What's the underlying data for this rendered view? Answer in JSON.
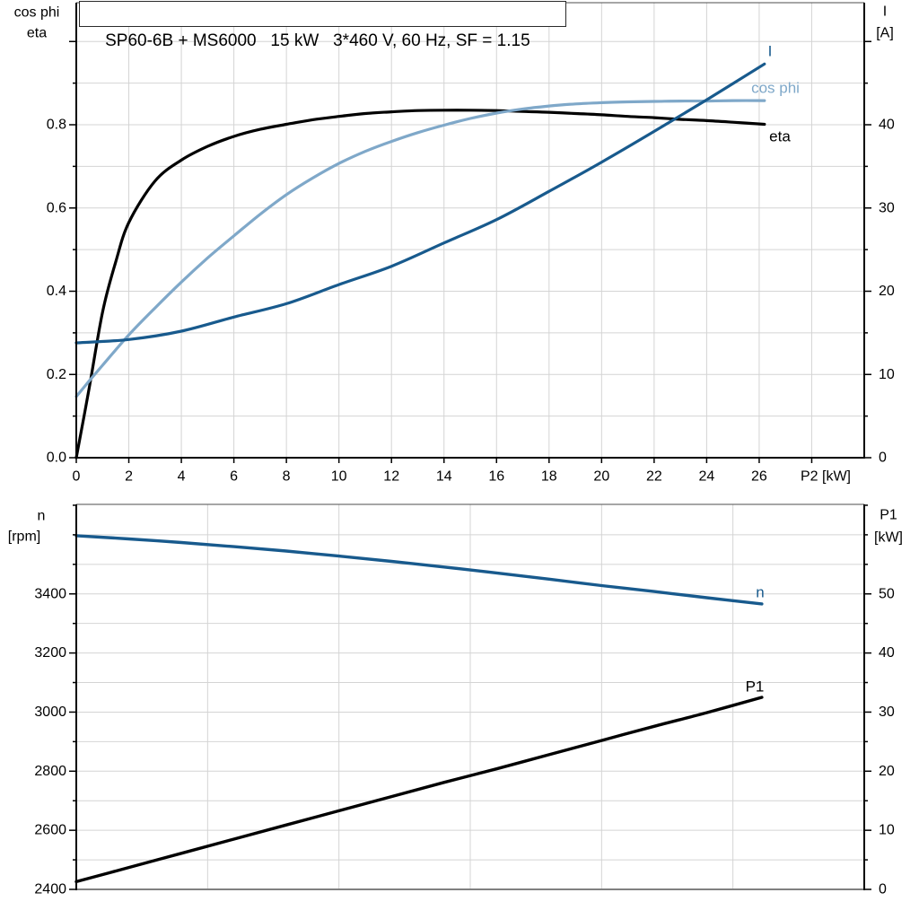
{
  "title": "SP60-6B + MS6000   15 kW   3*460 V, 60 Hz, SF = 1.15",
  "colors": {
    "dark_blue": "#185a8d",
    "light_blue": "#7fa8c9",
    "black": "#000000",
    "grid": "#d4d4d4",
    "frame": "#4d4d4d",
    "baseline_gray": "#808080"
  },
  "chart_data": [
    {
      "id": "motor-electrical-curves",
      "type": "line",
      "xlabel": "P2 [kW]",
      "x_range": [
        0,
        30
      ],
      "x_grid_step_kw": 2,
      "x_ticks": [
        "0",
        "2",
        "4",
        "6",
        "8",
        "10",
        "12",
        "14",
        "16",
        "18",
        "20",
        "22",
        "24",
        "26"
      ],
      "x_tick_values": [
        0,
        2,
        4,
        6,
        8,
        10,
        12,
        14,
        16,
        18,
        20,
        22,
        24,
        26
      ],
      "left_axis": {
        "title_lines": [
          "cos phi",
          "eta"
        ],
        "tick_labels": [
          "0.0",
          "0.2",
          "0.4",
          "0.6",
          "0.8"
        ],
        "tick_values": [
          0,
          0.2,
          0.4,
          0.6,
          0.8
        ],
        "range": [
          0,
          1.09
        ],
        "grid_step": 0.1
      },
      "right_axis": {
        "title_lines": [
          "I",
          "[A]"
        ],
        "tick_labels": [
          "0",
          "10",
          "20",
          "30",
          "40"
        ],
        "tick_values": [
          0,
          10,
          20,
          30,
          40
        ],
        "range": [
          0,
          54.7
        ],
        "grid_step": 5
      },
      "series": [
        {
          "name": "eta",
          "label": "eta",
          "axis": "left",
          "color_key": "black",
          "points": [
            [
              0,
              0
            ],
            [
              0.5,
              0.17
            ],
            [
              1,
              0.35
            ],
            [
              1.5,
              0.47
            ],
            [
              2,
              0.565
            ],
            [
              3,
              0.665
            ],
            [
              4,
              0.715
            ],
            [
              5,
              0.748
            ],
            [
              6,
              0.772
            ],
            [
              7,
              0.789
            ],
            [
              8,
              0.801
            ],
            [
              9,
              0.812
            ],
            [
              10,
              0.82
            ],
            [
              11,
              0.827
            ],
            [
              12,
              0.831
            ],
            [
              13,
              0.834
            ],
            [
              14,
              0.835
            ],
            [
              15,
              0.835
            ],
            [
              16,
              0.834
            ],
            [
              17,
              0.832
            ],
            [
              18,
              0.83
            ],
            [
              19,
              0.827
            ],
            [
              20,
              0.824
            ],
            [
              21,
              0.82
            ],
            [
              22,
              0.817
            ],
            [
              23,
              0.813
            ],
            [
              24,
              0.81
            ],
            [
              25,
              0.806
            ],
            [
              26.2,
              0.801
            ]
          ]
        },
        {
          "name": "cos phi",
          "label": "cos phi",
          "axis": "left",
          "color_key": "light_blue",
          "points": [
            [
              0,
              0.147
            ],
            [
              0.5,
              0.185
            ],
            [
              1,
              0.222
            ],
            [
              2,
              0.295
            ],
            [
              3,
              0.36
            ],
            [
              4,
              0.422
            ],
            [
              5,
              0.48
            ],
            [
              6,
              0.533
            ],
            [
              7,
              0.585
            ],
            [
              8,
              0.632
            ],
            [
              9,
              0.672
            ],
            [
              10,
              0.707
            ],
            [
              11,
              0.736
            ],
            [
              12,
              0.76
            ],
            [
              13,
              0.781
            ],
            [
              14,
              0.799
            ],
            [
              15,
              0.815
            ],
            [
              16,
              0.828
            ],
            [
              17,
              0.838
            ],
            [
              18,
              0.845
            ],
            [
              19,
              0.85
            ],
            [
              20,
              0.853
            ],
            [
              21,
              0.855
            ],
            [
              22,
              0.856
            ],
            [
              23,
              0.857
            ],
            [
              24,
              0.857
            ],
            [
              25,
              0.858
            ],
            [
              26.2,
              0.858
            ]
          ]
        },
        {
          "name": "I",
          "label": "I",
          "axis": "right",
          "color_key": "dark_blue",
          "points": [
            [
              0,
              13.8
            ],
            [
              2,
              14.2
            ],
            [
              4,
              15.2
            ],
            [
              6,
              16.9
            ],
            [
              8,
              18.5
            ],
            [
              10,
              20.8
            ],
            [
              12,
              23.0
            ],
            [
              14,
              25.8
            ],
            [
              16,
              28.6
            ],
            [
              18,
              32.0
            ],
            [
              20,
              35.5
            ],
            [
              22,
              39.2
            ],
            [
              24,
              43.0
            ],
            [
              26.2,
              47.3
            ]
          ]
        }
      ]
    },
    {
      "id": "speed-and-input-power-curves",
      "type": "line",
      "xlabel": "",
      "x_range": [
        0,
        30
      ],
      "x_grid_step_kw": 5,
      "x_ticks": [],
      "x_tick_values": [],
      "left_axis": {
        "title_lines": [
          "n",
          "[rpm]"
        ],
        "tick_labels": [
          "2400",
          "2600",
          "2800",
          "3000",
          "3200",
          "3400"
        ],
        "tick_values": [
          2400,
          2600,
          2800,
          3000,
          3200,
          3400
        ],
        "range": [
          2400,
          3700
        ],
        "grid_step": 100
      },
      "right_axis": {
        "title_lines": [
          "P1",
          "[kW]"
        ],
        "tick_labels": [
          "0",
          "10",
          "20",
          "30",
          "40",
          "50"
        ],
        "tick_values": [
          0,
          10,
          20,
          30,
          40,
          50
        ],
        "range": [
          0,
          65
        ],
        "grid_step": 5
      },
      "series": [
        {
          "name": "n",
          "label": "n",
          "axis": "left",
          "color_key": "dark_blue",
          "points": [
            [
              0,
              3597
            ],
            [
              2,
              3586
            ],
            [
              4,
              3574
            ],
            [
              6,
              3560
            ],
            [
              8,
              3545
            ],
            [
              10,
              3528
            ],
            [
              12,
              3510
            ],
            [
              14,
              3491
            ],
            [
              16,
              3471
            ],
            [
              18,
              3450
            ],
            [
              20,
              3428
            ],
            [
              22,
              3408
            ],
            [
              24,
              3387
            ],
            [
              26.1,
              3366
            ]
          ]
        },
        {
          "name": "P1",
          "label": "P1",
          "axis": "right",
          "color_key": "black",
          "points": [
            [
              0,
              1.3
            ],
            [
              2,
              3.7
            ],
            [
              4,
              6.1
            ],
            [
              6,
              8.5
            ],
            [
              8,
              10.9
            ],
            [
              10,
              13.3
            ],
            [
              12,
              15.7
            ],
            [
              14,
              18.1
            ],
            [
              16,
              20.4
            ],
            [
              18,
              22.8
            ],
            [
              20,
              25.2
            ],
            [
              22,
              27.6
            ],
            [
              24,
              29.9
            ],
            [
              26.1,
              32.5
            ]
          ]
        }
      ]
    }
  ]
}
